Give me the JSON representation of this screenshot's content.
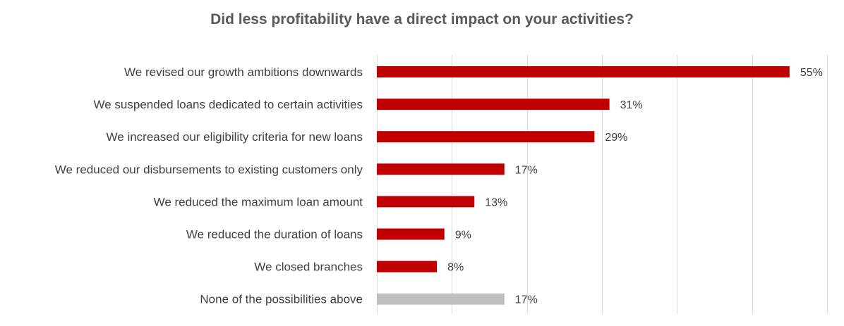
{
  "chart_data": {
    "type": "bar",
    "orientation": "horizontal",
    "title": "Did less profitability have a direct impact on your activities?",
    "categories": [
      "We revised our growth ambitions downwards",
      "We suspended loans dedicated to certain activities",
      "We increased our eligibility criteria for new loans",
      "We reduced our disbursements to existing customers only",
      "We reduced the maximum loan amount",
      "We reduced the duration of loans",
      "We closed branches",
      "None of the possibilities above"
    ],
    "values": [
      55,
      31,
      29,
      17,
      13,
      9,
      8,
      17
    ],
    "value_labels": [
      "55%",
      "31%",
      "29%",
      "17%",
      "13%",
      "9%",
      "8%",
      "17%"
    ],
    "xlim": [
      0,
      60
    ],
    "x_gridlines": [
      0,
      10,
      20,
      30,
      40,
      50,
      60
    ],
    "grid": true,
    "legend": "none",
    "colors": {
      "primary": "#c00000",
      "none_option": "#bfbfbf"
    },
    "bar_colors": [
      "#c00000",
      "#c00000",
      "#c00000",
      "#c00000",
      "#c00000",
      "#c00000",
      "#c00000",
      "#bfbfbf"
    ]
  }
}
